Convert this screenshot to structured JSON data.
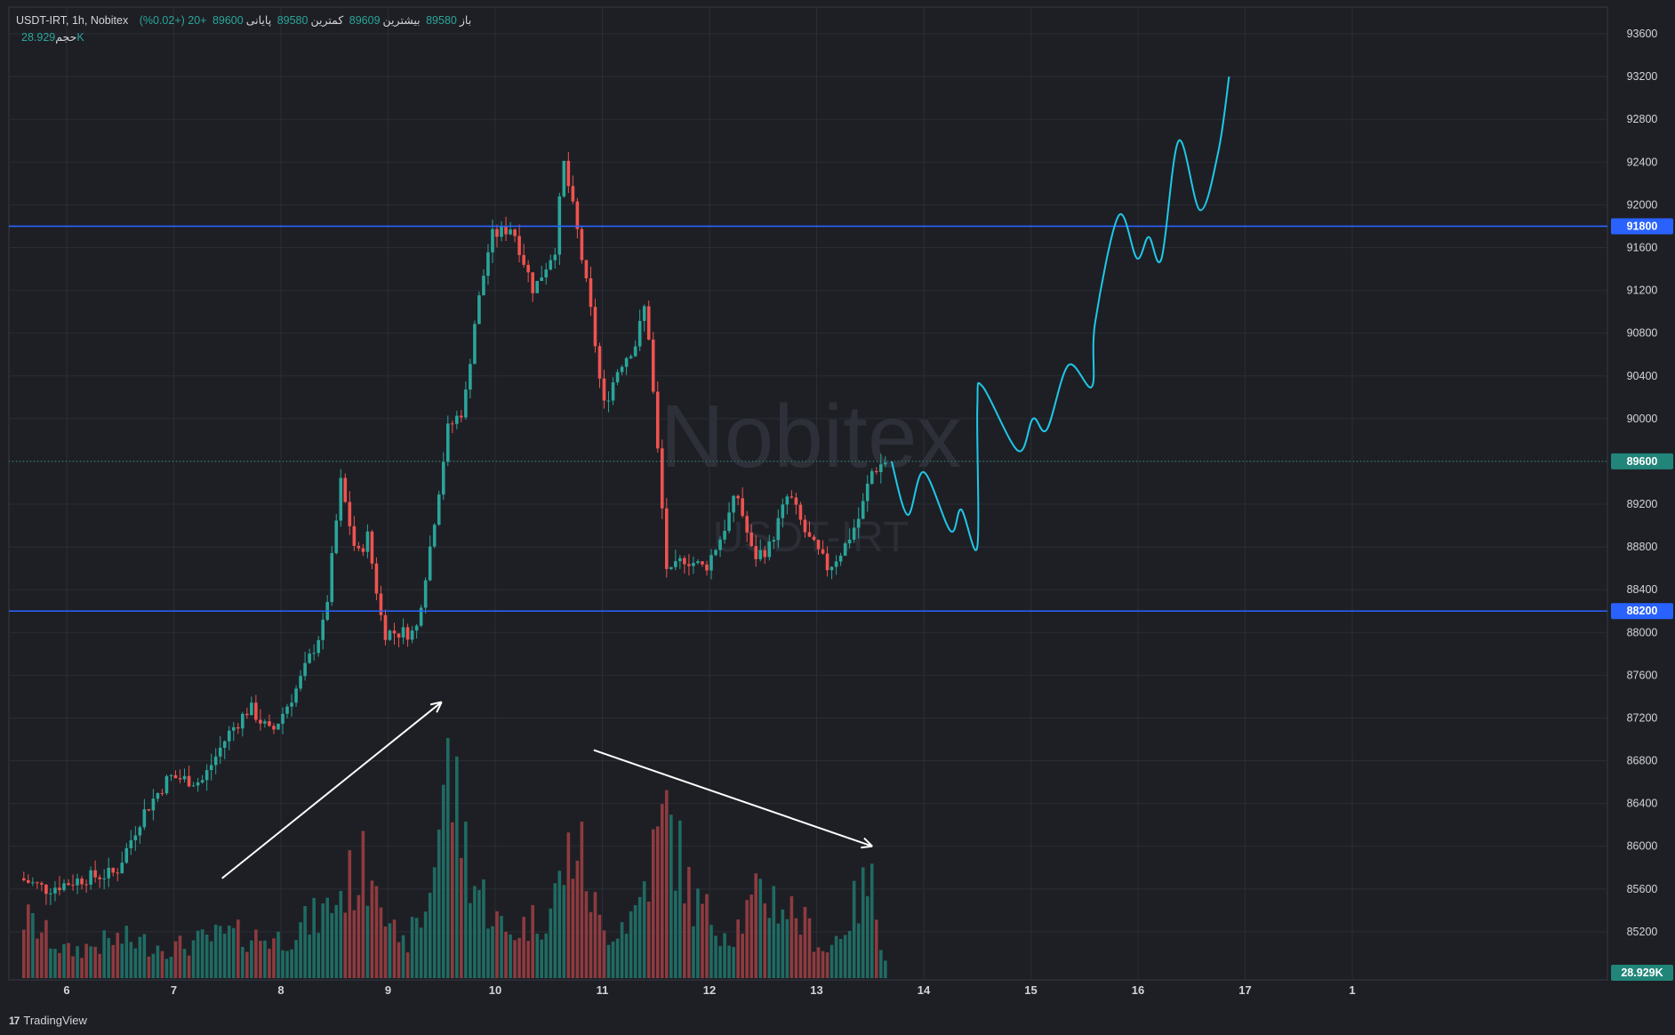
{
  "header": {
    "symbol_line": "USDT-IRT, 1h, Nobitex",
    "open_label": "باز",
    "open_value": "89580",
    "high_label": "بیشترین",
    "high_value": "89609",
    "low_label": "کمترین",
    "low_value": "89580",
    "close_label": "پایانی",
    "close_value": "89600",
    "change": "+20 (+0.02%)",
    "volume_label": "حجم",
    "volume_value": "28.929K"
  },
  "watermark": {
    "title": "Nobitex",
    "subtitle": "USDT-IRT"
  },
  "footer": {
    "logo_icon": "tradingview-logo-icon",
    "brand": "TradingView"
  },
  "colors": {
    "background": "#1e1f24",
    "grid": "#2a2d35",
    "up": "#2aa59a",
    "down": "#ef5350",
    "up_volume": "#1f6b63",
    "down_volume": "#8e3b3f",
    "level_line": "#2962ff",
    "projection": "#1ec8e8",
    "arrow": "#ffffff",
    "text": "#d1d4dc"
  },
  "chart_data": {
    "type": "candlestick",
    "timeframe": "1h",
    "xaxis_ticks": [
      "6",
      "7",
      "8",
      "9",
      "10",
      "11",
      "12",
      "13",
      "14",
      "15",
      "16",
      "17",
      "1"
    ],
    "yaxis_ticks": [
      85200,
      85600,
      86000,
      86400,
      86800,
      87200,
      87600,
      88000,
      88400,
      88800,
      89200,
      89600,
      90000,
      90400,
      90800,
      91200,
      91600,
      92000,
      92400,
      92800,
      93200,
      93600
    ],
    "ylim": [
      84750,
      93850
    ],
    "levels": [
      {
        "price": 91800,
        "label": "91800"
      },
      {
        "price": 88200,
        "label": "88200"
      }
    ],
    "last_price": {
      "price": 89600,
      "label": "89600"
    },
    "last_volume_label": "28.929K",
    "price_path": [
      {
        "day": 5.6,
        "price": 85700
      },
      {
        "day": 5.85,
        "price": 85600
      },
      {
        "day": 6.2,
        "price": 85700
      },
      {
        "day": 6.5,
        "price": 85750
      },
      {
        "day": 6.75,
        "price": 86300
      },
      {
        "day": 7.0,
        "price": 86650
      },
      {
        "day": 7.3,
        "price": 86600
      },
      {
        "day": 7.55,
        "price": 87050
      },
      {
        "day": 7.75,
        "price": 87300
      },
      {
        "day": 7.95,
        "price": 87050
      },
      {
        "day": 8.2,
        "price": 87500
      },
      {
        "day": 8.45,
        "price": 88100
      },
      {
        "day": 8.6,
        "price": 89400
      },
      {
        "day": 8.75,
        "price": 88700
      },
      {
        "day": 8.85,
        "price": 88900
      },
      {
        "day": 9.0,
        "price": 88000
      },
      {
        "day": 9.3,
        "price": 88000
      },
      {
        "day": 9.45,
        "price": 88900
      },
      {
        "day": 9.6,
        "price": 89900
      },
      {
        "day": 9.75,
        "price": 90100
      },
      {
        "day": 9.85,
        "price": 90900
      },
      {
        "day": 10.0,
        "price": 91700
      },
      {
        "day": 10.2,
        "price": 91800
      },
      {
        "day": 10.4,
        "price": 91200
      },
      {
        "day": 10.6,
        "price": 91600
      },
      {
        "day": 10.68,
        "price": 92400
      },
      {
        "day": 10.8,
        "price": 91800
      },
      {
        "day": 10.95,
        "price": 90900
      },
      {
        "day": 11.05,
        "price": 90100
      },
      {
        "day": 11.2,
        "price": 90500
      },
      {
        "day": 11.35,
        "price": 90700
      },
      {
        "day": 11.45,
        "price": 91100
      },
      {
        "day": 11.55,
        "price": 89800
      },
      {
        "day": 11.65,
        "price": 88500
      },
      {
        "day": 11.8,
        "price": 88700
      },
      {
        "day": 12.0,
        "price": 88600
      },
      {
        "day": 12.15,
        "price": 88900
      },
      {
        "day": 12.3,
        "price": 89300
      },
      {
        "day": 12.45,
        "price": 88700
      },
      {
        "day": 12.6,
        "price": 88800
      },
      {
        "day": 12.78,
        "price": 89300
      },
      {
        "day": 12.95,
        "price": 88900
      },
      {
        "day": 13.15,
        "price": 88600
      },
      {
        "day": 13.3,
        "price": 88800
      },
      {
        "day": 13.45,
        "price": 89100
      },
      {
        "day": 13.55,
        "price": 89500
      },
      {
        "day": 13.68,
        "price": 89600
      }
    ],
    "volume_path": [
      {
        "day": 5.6,
        "volume": 0.28
      },
      {
        "day": 6.0,
        "volume": 0.12
      },
      {
        "day": 6.5,
        "volume": 0.18
      },
      {
        "day": 7.0,
        "volume": 0.14
      },
      {
        "day": 7.5,
        "volume": 0.2
      },
      {
        "day": 8.0,
        "volume": 0.18
      },
      {
        "day": 8.4,
        "volume": 0.3
      },
      {
        "day": 8.65,
        "volume": 0.45
      },
      {
        "day": 8.9,
        "volume": 0.55
      },
      {
        "day": 9.1,
        "volume": 0.12
      },
      {
        "day": 9.35,
        "volume": 0.3
      },
      {
        "day": 9.55,
        "volume": 1.0
      },
      {
        "day": 9.8,
        "volume": 0.45
      },
      {
        "day": 10.1,
        "volume": 0.2
      },
      {
        "day": 10.5,
        "volume": 0.3
      },
      {
        "day": 10.75,
        "volume": 0.65
      },
      {
        "day": 11.0,
        "volume": 0.2
      },
      {
        "day": 11.3,
        "volume": 0.3
      },
      {
        "day": 11.6,
        "volume": 0.75
      },
      {
        "day": 11.85,
        "volume": 0.35
      },
      {
        "day": 12.2,
        "volume": 0.2
      },
      {
        "day": 12.5,
        "volume": 0.4
      },
      {
        "day": 12.8,
        "volume": 0.3
      },
      {
        "day": 13.1,
        "volume": 0.12
      },
      {
        "day": 13.5,
        "volume": 0.45
      },
      {
        "day": 13.68,
        "volume": 0.02
      }
    ],
    "projection": [
      {
        "day": 13.7,
        "price": 89600
      },
      {
        "day": 13.85,
        "price": 89100
      },
      {
        "day": 14.0,
        "price": 89500
      },
      {
        "day": 14.25,
        "price": 88950
      },
      {
        "day": 14.35,
        "price": 89150
      },
      {
        "day": 14.5,
        "price": 88800
      },
      {
        "day": 14.5,
        "price": 90100
      },
      {
        "day": 14.55,
        "price": 90300
      },
      {
        "day": 14.88,
        "price": 89700
      },
      {
        "day": 15.02,
        "price": 90000
      },
      {
        "day": 15.15,
        "price": 89900
      },
      {
        "day": 15.35,
        "price": 90500
      },
      {
        "day": 15.57,
        "price": 90300
      },
      {
        "day": 15.6,
        "price": 90900
      },
      {
        "day": 15.82,
        "price": 91900
      },
      {
        "day": 15.99,
        "price": 91500
      },
      {
        "day": 16.1,
        "price": 91700
      },
      {
        "day": 16.22,
        "price": 91500
      },
      {
        "day": 16.38,
        "price": 92600
      },
      {
        "day": 16.58,
        "price": 91950
      },
      {
        "day": 16.75,
        "price": 92500
      },
      {
        "day": 16.85,
        "price": 93200
      }
    ],
    "arrows": [
      {
        "from": {
          "day": 7.45,
          "price": 85700
        },
        "to": {
          "day": 9.5,
          "price": 87350
        }
      },
      {
        "from": {
          "day": 10.92,
          "price": 86900
        },
        "to": {
          "day": 13.52,
          "price": 86000
        }
      }
    ]
  }
}
